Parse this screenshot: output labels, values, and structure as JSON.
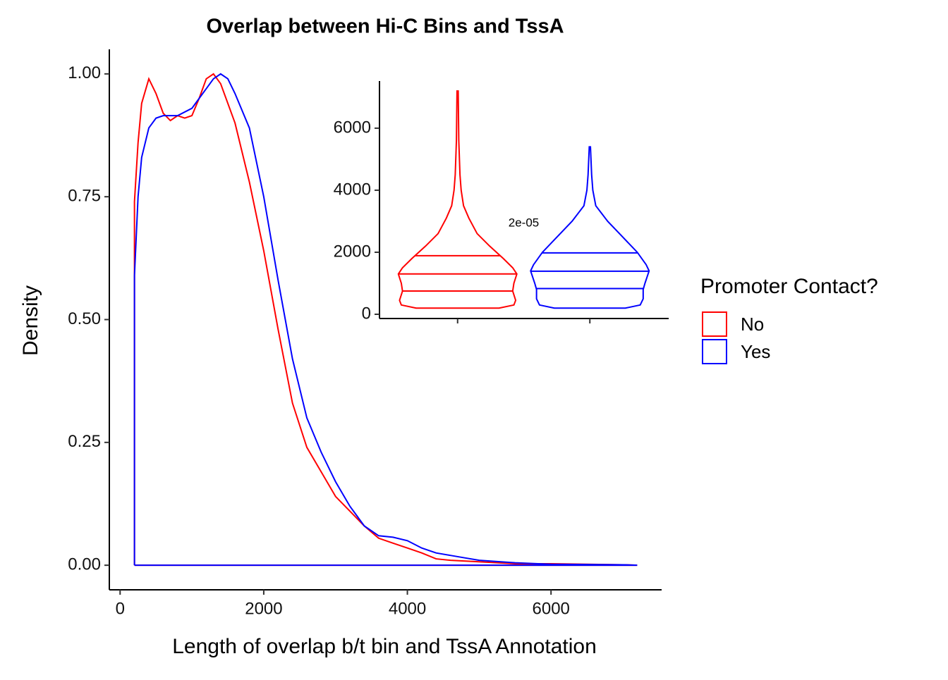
{
  "chart_data": [
    {
      "type": "density",
      "title": "Overlap between Hi-C Bins and TssA",
      "x_label": "Length of overlap b/t bin and TssA Annotation",
      "y_label": "Density",
      "legend_title": "Promoter Contact?",
      "legend_position": "right",
      "xlim": [
        -150,
        7540
      ],
      "ylim": [
        -0.05,
        1.05
      ],
      "xticks": [
        0,
        2000,
        4000,
        6000
      ],
      "yticks": [
        {
          "value": 0,
          "label": "0.00"
        },
        {
          "value": 0.25,
          "label": "0.25"
        },
        {
          "value": 0.5,
          "label": "0.50"
        },
        {
          "value": 0.75,
          "label": "0.75"
        },
        {
          "value": 1,
          "label": "1.00"
        }
      ],
      "series": [
        {
          "name": "No",
          "color": "#ff0000",
          "x": [
            200,
            200,
            250,
            300,
            400,
            500,
            600,
            700,
            800,
            900,
            1000,
            1100,
            1200,
            1300,
            1400,
            1600,
            1800,
            2000,
            2200,
            2400,
            2600,
            2800,
            3000,
            3200,
            3400,
            3600,
            3800,
            4000,
            4200,
            4400,
            4600,
            5000,
            5500,
            6000,
            6500,
            7000,
            7200,
            200
          ],
          "values": [
            0,
            0.74,
            0.86,
            0.94,
            0.99,
            0.96,
            0.92,
            0.905,
            0.915,
            0.91,
            0.915,
            0.95,
            0.99,
            1.0,
            0.98,
            0.9,
            0.78,
            0.64,
            0.48,
            0.33,
            0.24,
            0.19,
            0.14,
            0.11,
            0.08,
            0.055,
            0.045,
            0.035,
            0.025,
            0.013,
            0.01,
            0.007,
            0.003,
            0.003,
            0.002,
            0.001,
            0,
            0
          ]
        },
        {
          "name": "Yes",
          "color": "#0000ff",
          "x": [
            200,
            200,
            250,
            300,
            400,
            500,
            600,
            800,
            1000,
            1100,
            1200,
            1300,
            1400,
            1500,
            1600,
            1800,
            2000,
            2200,
            2400,
            2600,
            2800,
            3000,
            3200,
            3400,
            3600,
            3800,
            4000,
            4200,
            4400,
            4600,
            4800,
            5000,
            5500,
            6000,
            7000,
            7200,
            200
          ],
          "values": [
            0,
            0.59,
            0.75,
            0.83,
            0.89,
            0.91,
            0.915,
            0.915,
            0.93,
            0.95,
            0.97,
            0.99,
            1.0,
            0.99,
            0.96,
            0.89,
            0.75,
            0.58,
            0.42,
            0.3,
            0.23,
            0.17,
            0.12,
            0.08,
            0.06,
            0.057,
            0.05,
            0.035,
            0.025,
            0.02,
            0.015,
            0.01,
            0.005,
            0.002,
            0.001,
            0,
            0
          ]
        }
      ]
    },
    {
      "type": "violin",
      "annotation": "2e-05",
      "categories": [
        null,
        null
      ],
      "ylim": [
        -136,
        7520
      ],
      "yticks": [
        0,
        2000,
        4000,
        6000
      ],
      "series": [
        {
          "color": "#ff0000",
          "y": [
            7200,
            5600,
            4500,
            4000,
            3500,
            3100,
            2600,
            2200,
            1800,
            1500,
            1300,
            1000,
            750,
            450,
            300,
            200
          ],
          "density": [
            0.01,
            0.02,
            0.04,
            0.06,
            0.1,
            0.19,
            0.33,
            0.54,
            0.77,
            0.93,
            1.0,
            0.95,
            0.93,
            0.98,
            0.95,
            0.7
          ],
          "quantiles": [
            750,
            1300,
            1890
          ]
        },
        {
          "color": "#0000ff",
          "y": [
            5400,
            4500,
            4000,
            3500,
            3000,
            2500,
            2000,
            1600,
            1400,
            1000,
            800,
            500,
            300,
            200
          ],
          "density": [
            0.01,
            0.03,
            0.05,
            0.1,
            0.3,
            0.55,
            0.8,
            0.95,
            1.0,
            0.93,
            0.9,
            0.9,
            0.85,
            0.6
          ],
          "quantiles": [
            830,
            1390,
            1980
          ]
        }
      ]
    }
  ]
}
